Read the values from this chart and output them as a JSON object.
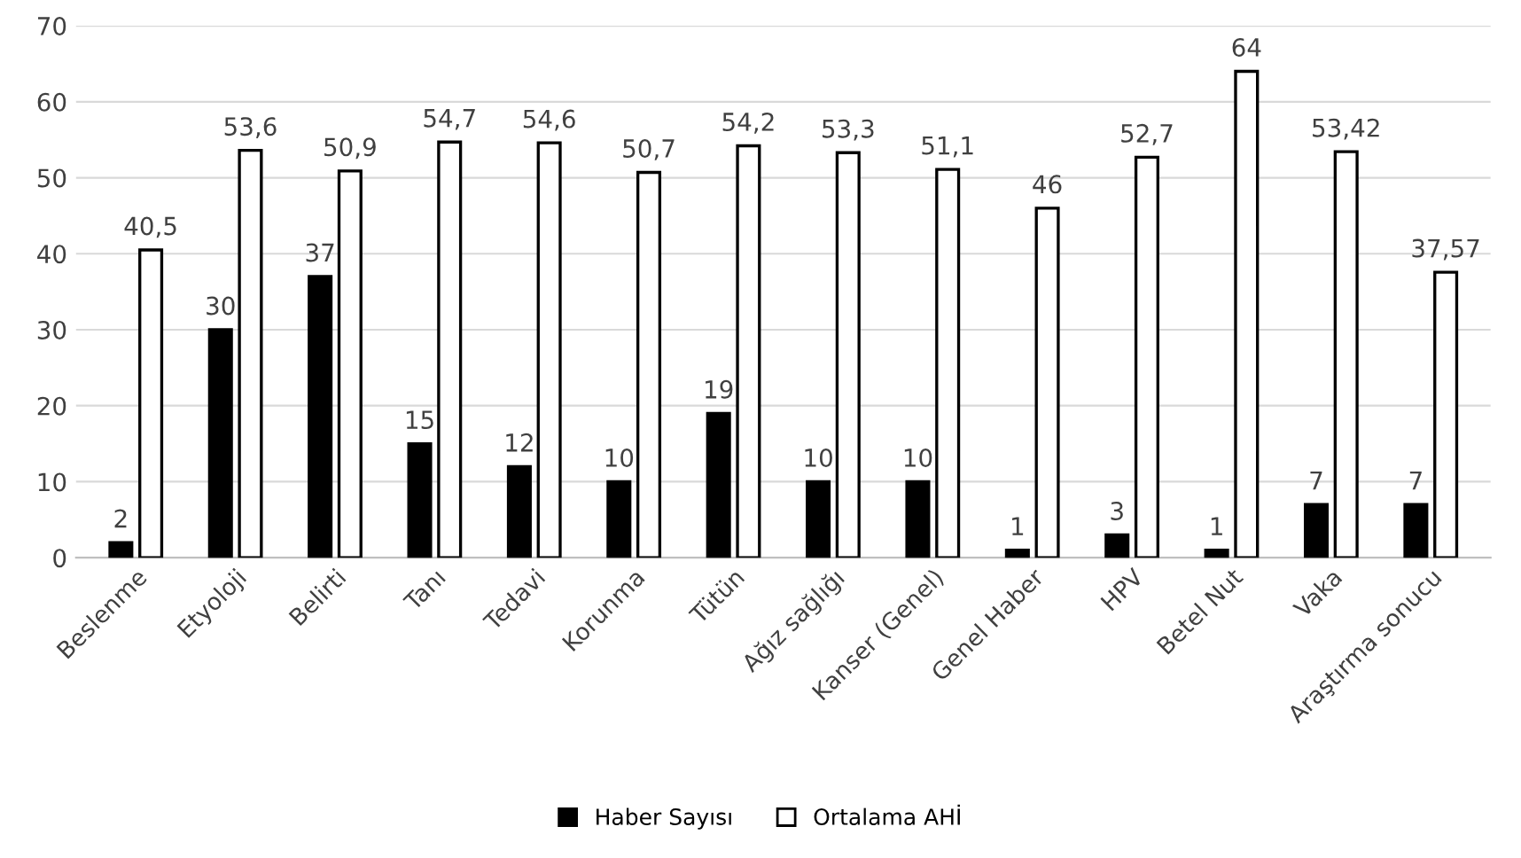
{
  "chart_data": {
    "type": "bar",
    "categories": [
      "Beslenme",
      "Etyoloji",
      "Belirti",
      "Tanı",
      "Tedavi",
      "Korunma",
      "Tütün",
      "Ağız sağlığı",
      "Kanser (Genel)",
      "Genel Haber",
      "HPV",
      "Betel Nut",
      "Vaka",
      "Araştırma sonucu"
    ],
    "series": [
      {
        "name": "Haber Sayısı",
        "color": "#000000",
        "values": [
          2,
          30,
          37,
          15,
          12,
          10,
          19,
          10,
          10,
          1,
          3,
          1,
          7,
          7
        ],
        "value_labels": [
          "2",
          "30",
          "37",
          "15",
          "12",
          "10",
          "19",
          "10",
          "10",
          "1",
          "3",
          "1",
          "7",
          "7"
        ]
      },
      {
        "name": "Ortalama AHİ",
        "color": "#ffffff",
        "values": [
          40.5,
          53.6,
          50.9,
          54.7,
          54.6,
          50.7,
          54.2,
          53.3,
          51.1,
          46,
          52.7,
          64,
          53.42,
          37.57
        ],
        "value_labels": [
          "40,5",
          "53,6",
          "50,9",
          "54,7",
          "54,6",
          "50,7",
          "54,2",
          "53,3",
          "51,1",
          "46",
          "52,7",
          "64",
          "53,42",
          "37,57"
        ]
      }
    ],
    "ylim": [
      0,
      70
    ],
    "yticks": [
      0,
      10,
      20,
      30,
      40,
      50,
      60,
      70
    ],
    "grid": "y",
    "legend": "bottom"
  }
}
